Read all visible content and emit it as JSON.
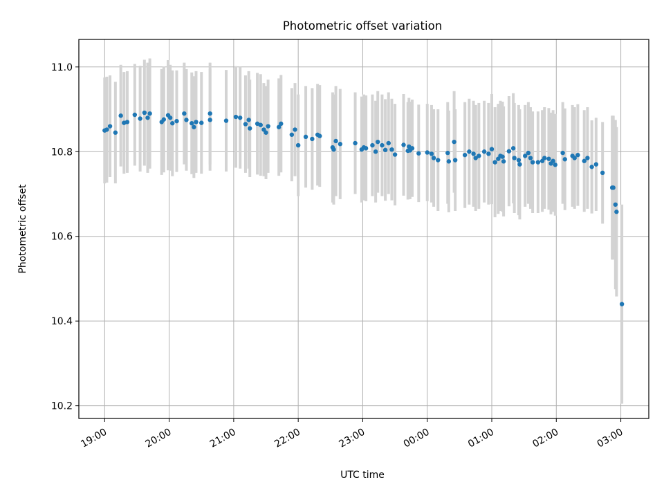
{
  "chart_data": {
    "type": "scatter",
    "title": "Photometric offset variation",
    "xlabel": "UTC time",
    "ylabel": "Photometric offset",
    "x_ticks": [
      "19:00",
      "20:00",
      "21:00",
      "22:00",
      "23:00",
      "00:00",
      "01:00",
      "02:00",
      "03:00"
    ],
    "y_ticks": [
      "10.2",
      "10.4",
      "10.6",
      "10.8",
      "11.0"
    ],
    "xlim": [
      "18:36",
      "03:26"
    ],
    "ylim": [
      10.17,
      11.065
    ],
    "grid": true,
    "point_color": "#1f77b4",
    "errorbar_color": "#d3d3d3",
    "points": [
      [
        "19:00",
        10.85,
        0.125
      ],
      [
        "19:02",
        10.852,
        0.125
      ],
      [
        "19:05",
        10.86,
        0.12
      ],
      [
        "19:10",
        10.845,
        0.12
      ],
      [
        "19:15",
        10.885,
        0.12
      ],
      [
        "19:18",
        10.868,
        0.12
      ],
      [
        "19:21",
        10.87,
        0.12
      ],
      [
        "19:28",
        10.887,
        0.12
      ],
      [
        "19:33",
        10.878,
        0.125
      ],
      [
        "19:37",
        10.892,
        0.125
      ],
      [
        "19:40",
        10.88,
        0.13
      ],
      [
        "19:42",
        10.89,
        0.13
      ],
      [
        "19:53",
        10.87,
        0.125
      ],
      [
        "19:55",
        10.876,
        0.125
      ],
      [
        "19:59",
        10.886,
        0.13
      ],
      [
        "20:01",
        10.88,
        0.125
      ],
      [
        "20:03",
        10.867,
        0.125
      ],
      [
        "20:07",
        10.872,
        0.12
      ],
      [
        "20:14",
        10.89,
        0.12
      ],
      [
        "20:16",
        10.875,
        0.12
      ],
      [
        "20:21",
        10.867,
        0.12
      ],
      [
        "20:23",
        10.858,
        0.12
      ],
      [
        "20:25",
        10.87,
        0.12
      ],
      [
        "20:30",
        10.868,
        0.12
      ],
      [
        "20:38",
        10.875,
        0.12
      ],
      [
        "20:38",
        10.89,
        0.12
      ],
      [
        "20:53",
        10.873,
        0.12
      ],
      [
        "21:02",
        10.882,
        0.12
      ],
      [
        "21:06",
        10.88,
        0.12
      ],
      [
        "21:11",
        10.865,
        0.115
      ],
      [
        "21:14",
        10.875,
        0.115
      ],
      [
        "21:15",
        10.855,
        0.115
      ],
      [
        "21:22",
        10.866,
        0.12
      ],
      [
        "21:25",
        10.863,
        0.12
      ],
      [
        "21:28",
        10.852,
        0.11
      ],
      [
        "21:30",
        10.845,
        0.11
      ],
      [
        "21:32",
        10.86,
        0.11
      ],
      [
        "21:42",
        10.858,
        0.115
      ],
      [
        "21:44",
        10.866,
        0.115
      ],
      [
        "21:54",
        10.84,
        0.11
      ],
      [
        "21:57",
        10.852,
        0.11
      ],
      [
        "22:00",
        10.815,
        0.12
      ],
      [
        "22:07",
        10.835,
        0.12
      ],
      [
        "22:13",
        10.83,
        0.12
      ],
      [
        "22:18",
        10.84,
        0.12
      ],
      [
        "22:20",
        10.837,
        0.12
      ],
      [
        "22:32",
        10.81,
        0.13
      ],
      [
        "22:33",
        10.805,
        0.13
      ],
      [
        "22:35",
        10.825,
        0.13
      ],
      [
        "22:39",
        10.818,
        0.13
      ],
      [
        "22:53",
        10.82,
        0.12
      ],
      [
        "22:59",
        10.805,
        0.125
      ],
      [
        "23:01",
        10.81,
        0.125
      ],
      [
        "23:03",
        10.808,
        0.125
      ],
      [
        "23:09",
        10.815,
        0.12
      ],
      [
        "23:12",
        10.8,
        0.12
      ],
      [
        "23:14",
        10.823,
        0.12
      ],
      [
        "23:18",
        10.815,
        0.12
      ],
      [
        "23:21",
        10.804,
        0.12
      ],
      [
        "23:24",
        10.82,
        0.12
      ],
      [
        "23:27",
        10.805,
        0.12
      ],
      [
        "23:30",
        10.793,
        0.12
      ],
      [
        "23:38",
        10.816,
        0.12
      ],
      [
        "23:42",
        10.802,
        0.115
      ],
      [
        "23:43",
        10.812,
        0.115
      ],
      [
        "23:44",
        10.803,
        0.115
      ],
      [
        "23:46",
        10.808,
        0.115
      ],
      [
        "23:52",
        10.796,
        0.115
      ],
      [
        "24:00",
        10.798,
        0.115
      ],
      [
        "24:04",
        10.795,
        0.115
      ],
      [
        "24:06",
        10.785,
        0.115
      ],
      [
        "24:10",
        10.78,
        0.12
      ],
      [
        "24:19",
        10.797,
        0.12
      ],
      [
        "24:20",
        10.777,
        0.12
      ],
      [
        "24:25",
        10.823,
        0.12
      ],
      [
        "24:26",
        10.78,
        0.12
      ],
      [
        "24:35",
        10.792,
        0.125
      ],
      [
        "24:39",
        10.8,
        0.125
      ],
      [
        "24:43",
        10.795,
        0.125
      ],
      [
        "24:45",
        10.785,
        0.125
      ],
      [
        "24:48",
        10.79,
        0.125
      ],
      [
        "24:53",
        10.8,
        0.12
      ],
      [
        "24:57",
        10.795,
        0.12
      ],
      [
        "25:00",
        10.806,
        0.13
      ],
      [
        "25:03",
        10.775,
        0.13
      ],
      [
        "25:06",
        10.783,
        0.13
      ],
      [
        "25:08",
        10.79,
        0.13
      ],
      [
        "25:10",
        10.788,
        0.13
      ],
      [
        "25:11",
        10.777,
        0.13
      ],
      [
        "25:16",
        10.801,
        0.13
      ],
      [
        "25:20",
        10.808,
        0.13
      ],
      [
        "25:21",
        10.785,
        0.13
      ],
      [
        "25:25",
        10.78,
        0.13
      ],
      [
        "25:26",
        10.77,
        0.13
      ],
      [
        "25:31",
        10.79,
        0.12
      ],
      [
        "25:34",
        10.797,
        0.12
      ],
      [
        "25:36",
        10.785,
        0.12
      ],
      [
        "25:38",
        10.775,
        0.12
      ],
      [
        "25:43",
        10.775,
        0.12
      ],
      [
        "25:47",
        10.778,
        0.12
      ],
      [
        "25:49",
        10.785,
        0.12
      ],
      [
        "25:53",
        10.783,
        0.12
      ],
      [
        "25:55",
        10.772,
        0.12
      ],
      [
        "25:57",
        10.778,
        0.12
      ],
      [
        "25:59",
        10.769,
        0.12
      ],
      [
        "26:06",
        10.797,
        0.12
      ],
      [
        "26:08",
        10.782,
        0.12
      ],
      [
        "26:15",
        10.79,
        0.12
      ],
      [
        "26:17",
        10.785,
        0.12
      ],
      [
        "26:20",
        10.792,
        0.12
      ],
      [
        "26:26",
        10.778,
        0.12
      ],
      [
        "26:29",
        10.785,
        0.12
      ],
      [
        "26:33",
        10.764,
        0.11
      ],
      [
        "26:37",
        10.77,
        0.11
      ],
      [
        "26:43",
        10.75,
        0.12
      ],
      [
        "26:52",
        10.715,
        0.17
      ],
      [
        "26:53",
        10.715,
        0.17
      ],
      [
        "26:55",
        10.675,
        0.2
      ],
      [
        "26:56",
        10.658,
        0.2
      ],
      [
        "27:01",
        10.44,
        0.235
      ]
    ]
  }
}
